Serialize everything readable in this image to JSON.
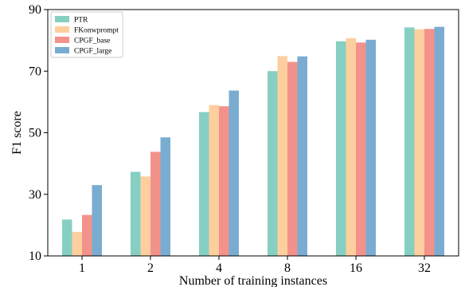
{
  "chart_data": {
    "type": "bar",
    "title": "",
    "xlabel": "Number of training instances",
    "ylabel": "F1 score",
    "categories": [
      "1",
      "2",
      "4",
      "8",
      "16",
      "32"
    ],
    "ylim": [
      10,
      90
    ],
    "yticks": [
      "10",
      "30",
      "50",
      "70",
      "90"
    ],
    "grid": false,
    "legend_position": "top-left",
    "series": [
      {
        "name": "PTR",
        "color": "#86cfc3",
        "values": [
          21.8,
          37.3,
          56.7,
          70.0,
          79.7,
          84.2
        ]
      },
      {
        "name": "FKonwprompt",
        "color": "#fdcf9f",
        "values": [
          17.8,
          35.8,
          59.0,
          74.9,
          80.7,
          83.6
        ]
      },
      {
        "name": "CPGF_base",
        "color": "#f3928a",
        "values": [
          23.3,
          43.8,
          58.6,
          73.0,
          79.3,
          83.7
        ]
      },
      {
        "name": "CPGF_large",
        "color": "#7aacd1",
        "values": [
          33.0,
          48.5,
          63.7,
          74.8,
          80.2,
          84.4
        ]
      }
    ]
  }
}
